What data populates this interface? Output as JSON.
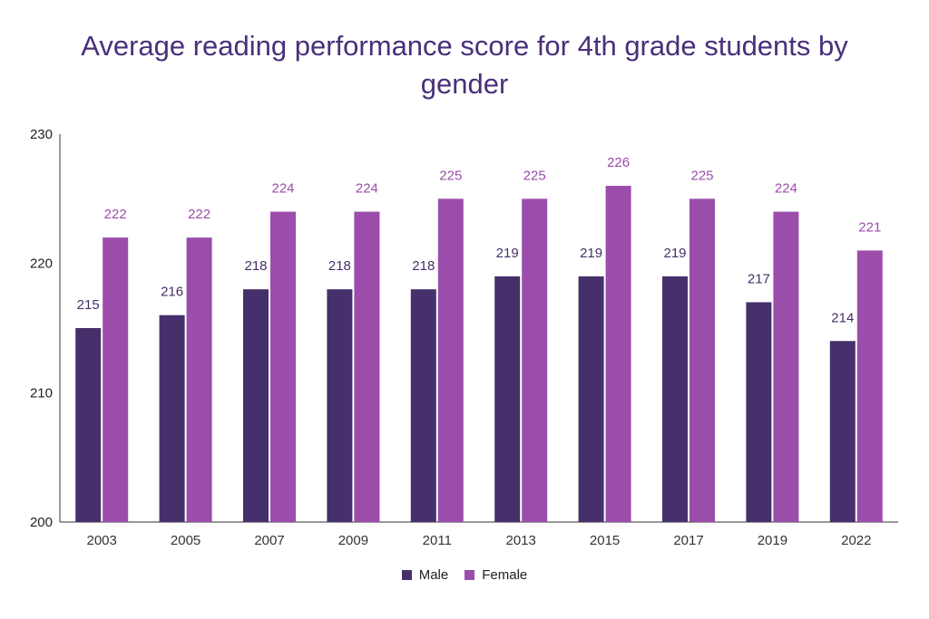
{
  "chart_data": {
    "type": "bar",
    "title": "Average reading performance score for 4th grade students by gender",
    "categories": [
      "2003",
      "2005",
      "2007",
      "2009",
      "2011",
      "2013",
      "2015",
      "2017",
      "2019",
      "2022"
    ],
    "series": [
      {
        "name": "Male",
        "color": "#45306b",
        "values": [
          215,
          216,
          218,
          218,
          218,
          219,
          219,
          219,
          217,
          214
        ]
      },
      {
        "name": "Female",
        "color": "#9b4dab",
        "values": [
          222,
          222,
          224,
          224,
          225,
          225,
          226,
          225,
          224,
          221
        ]
      }
    ],
    "ylim": [
      200,
      230
    ],
    "yticks": [
      200,
      210,
      220,
      230
    ],
    "grid": false,
    "legend_position": "bottom",
    "data_labels": true
  }
}
